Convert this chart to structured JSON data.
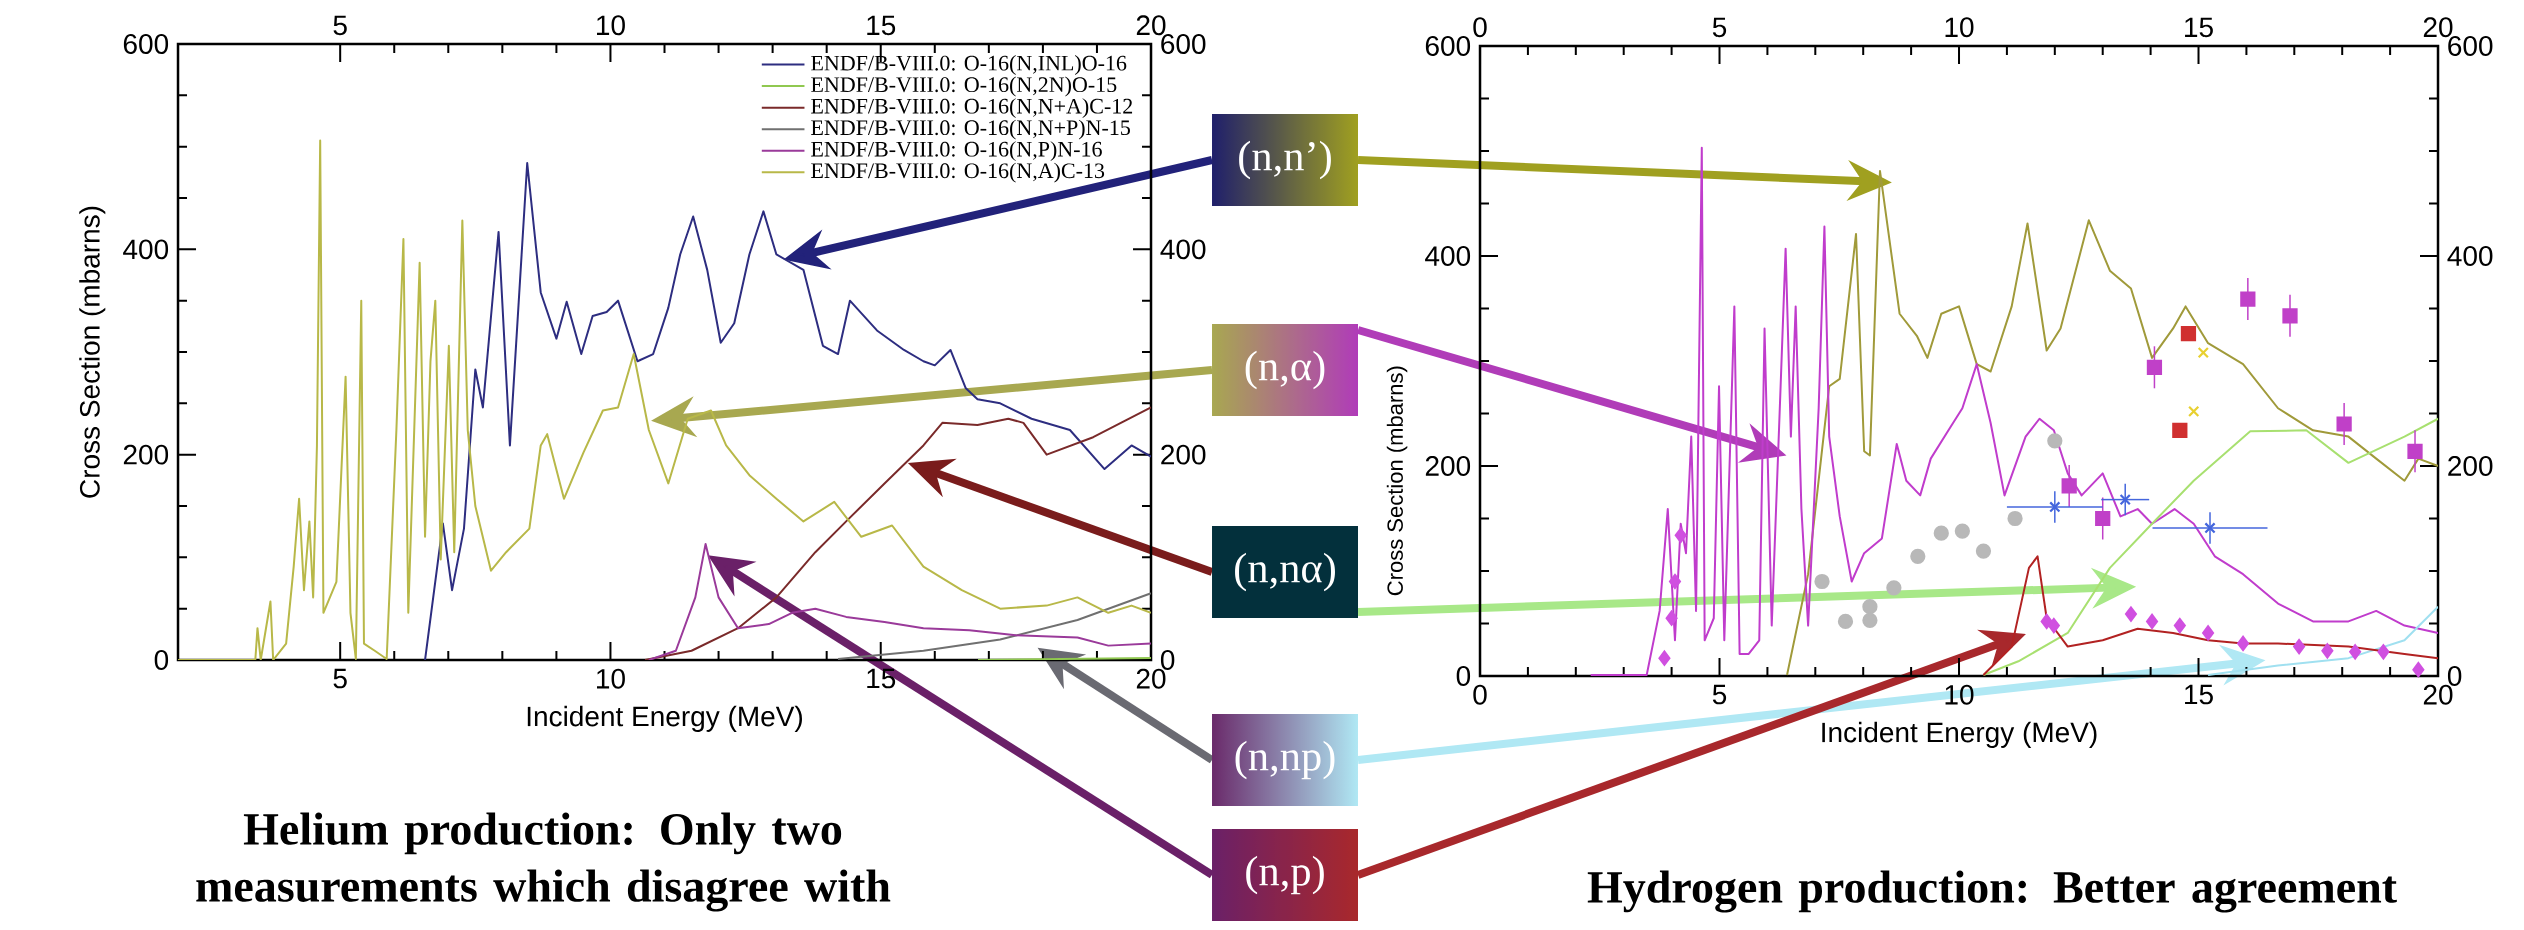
{
  "chart_data": [
    {
      "type": "line",
      "xlabel": "Incident Energy (MeV)",
      "ylabel": "Cross Section (mbarns)",
      "xlim": [
        2,
        20
      ],
      "xticks": [
        5,
        10,
        15,
        20
      ],
      "ylim": [
        0,
        600
      ],
      "yticks": [
        0,
        200,
        400,
        600
      ],
      "x2lim": [
        2,
        20
      ],
      "x2ticks": [
        5,
        10,
        15,
        20
      ],
      "y2lim": [
        0,
        600
      ],
      "y2ticks": [
        0,
        200,
        400,
        600
      ],
      "legend": "top right",
      "marker": "none",
      "line_style": "solid",
      "annotations": [
        "(n,n’)",
        "(n,α)",
        "(n,nα)",
        "(n,np)",
        "(n,p)",
        "Helium production: Only two measurements which disagree with"
      ],
      "series": [
        {
          "name": "ENDF/B-VIII.0: O-16(N,INL)O-16",
          "color": "#2d2d80",
          "x": [
            6.57,
            6.9,
            7.07,
            7.29,
            7.5,
            7.64,
            7.93,
            8.14,
            8.46,
            8.71,
            9.0,
            9.19,
            9.46,
            9.67,
            9.93,
            10.14,
            10.5,
            10.79,
            11.07,
            11.29,
            11.53,
            11.79,
            12.04,
            12.29,
            12.57,
            12.83,
            13.07,
            13.57,
            13.93,
            14.21,
            14.43,
            14.93,
            15.43,
            15.79,
            16.0,
            16.29,
            16.57,
            16.79,
            17.21,
            17.79,
            18.5,
            19.14,
            19.64,
            20
          ],
          "values": [
            0,
            133,
            68,
            128,
            283,
            246,
            417,
            209,
            484,
            358,
            313,
            349,
            298,
            335,
            339,
            350,
            291,
            298,
            343,
            395,
            432,
            380,
            309,
            328,
            395,
            437,
            395,
            380,
            306,
            298,
            350,
            321,
            302,
            291,
            287,
            302,
            265,
            254,
            250,
            235,
            224,
            186,
            209,
            198
          ]
        },
        {
          "name": "ENDF/B-VIII.0: O-16(N,2N)O-15",
          "color": "#90c850",
          "x": [
            16.8,
            20
          ],
          "values": [
            0,
            2
          ]
        },
        {
          "name": "ENDF/B-VIII.0: O-16(N,N+A)C-12",
          "color": "#7a2a2a",
          "x": [
            10.64,
            11.5,
            12.36,
            13.07,
            13.79,
            14.36,
            15.07,
            15.79,
            16.14,
            16.79,
            17.36,
            17.64,
            18.07,
            18.93,
            20
          ],
          "values": [
            0,
            9,
            31,
            61,
            105,
            135,
            172,
            209,
            231,
            229,
            235,
            231,
            200,
            217,
            246
          ]
        },
        {
          "name": "ENDF/B-VIII.0: O-16(N,N+P)N-15",
          "color": "#707070",
          "x": [
            14.21,
            15.79,
            17.21,
            18.64,
            20
          ],
          "values": [
            1,
            9,
            20,
            39,
            65
          ]
        },
        {
          "name": "ENDF/B-VIII.0: O-16(N,P)N-16",
          "color": "#9a3a9a",
          "x": [
            10.71,
            11.21,
            11.57,
            11.76,
            12.0,
            12.36,
            12.93,
            13.36,
            13.79,
            14.36,
            15.07,
            15.79,
            16.64,
            17.5,
            18.64,
            19.21,
            20
          ],
          "values": [
            0,
            9,
            61,
            113,
            61,
            31,
            35,
            46,
            50,
            42,
            37,
            31,
            29,
            24,
            22,
            14,
            16
          ]
        },
        {
          "name": "ENDF/B-VIII.0: O-16(N,A)C-13",
          "color": "#b8b848",
          "x": [
            2,
            3.43,
            3.47,
            3.53,
            3.71,
            3.76,
            4.0,
            4.14,
            4.24,
            4.33,
            4.43,
            4.5,
            4.57,
            4.63,
            4.69,
            4.93,
            5.1,
            5.19,
            5.29,
            5.39,
            5.44,
            5.64,
            5.86,
            6.04,
            6.17,
            6.26,
            6.47,
            6.57,
            6.67,
            6.76,
            6.86,
            7.01,
            7.11,
            7.26,
            7.36,
            7.5,
            7.79,
            8.07,
            8.5,
            8.71,
            8.83,
            9.14,
            9.5,
            9.86,
            10.14,
            10.43,
            10.71,
            11.07,
            11.43,
            11.86,
            12.14,
            12.57,
            13.07,
            13.57,
            14.14,
            14.64,
            15.21,
            15.79,
            16.5,
            17.21,
            18.07,
            18.64,
            19.21,
            19.64,
            20
          ],
          "values": [
            0,
            0,
            31,
            0,
            57,
            0,
            16,
            91,
            157,
            68,
            135,
            61,
            209,
            506,
            46,
            76,
            276,
            46,
            1,
            350,
            16,
            9,
            1,
            224,
            410,
            46,
            387,
            120,
            291,
            350,
            98,
            306,
            105,
            428,
            224,
            150,
            87,
            105,
            128,
            209,
            220,
            157,
            202,
            243,
            246,
            298,
            224,
            172,
            235,
            243,
            209,
            180,
            157,
            135,
            154,
            120,
            131,
            91,
            68,
            50,
            53,
            61,
            46,
            53,
            46
          ]
        }
      ]
    },
    {
      "type": "line",
      "xlabel": "Incident Energy (MeV)",
      "ylabel": "Cross Section (mbarns)",
      "xlim": [
        0,
        20
      ],
      "xticks": [
        0,
        5,
        10,
        15,
        20
      ],
      "ylim": [
        0,
        600
      ],
      "yticks": [
        0,
        200,
        400,
        600
      ],
      "x2lim": [
        0,
        20
      ],
      "x2ticks": [
        0,
        5,
        10,
        15,
        20
      ],
      "y2lim": [
        0,
        600
      ],
      "y2ticks": [
        0,
        200,
        400,
        600
      ],
      "marker": "none",
      "line_style": "solid",
      "annotations": [
        "Hydrogen production: Better agreement"
      ],
      "series": [
        {
          "color": "#a09a3a",
          "x": [
            6.41,
            6.85,
            7.29,
            7.51,
            7.85,
            8.02,
            8.14,
            8.35,
            8.76,
            9.12,
            9.34,
            9.63,
            10.0,
            10.37,
            10.66,
            11.1,
            11.43,
            11.83,
            12.12,
            12.71,
            13.15,
            13.59,
            14.03,
            14.47,
            14.73,
            15.2,
            15.93,
            16.66,
            17.39,
            18.13,
            18.71,
            19.3,
            19.59,
            20
          ],
          "values": [
            1,
            97,
            276,
            283,
            421,
            214,
            210,
            481,
            345,
            324,
            303,
            345,
            352,
            297,
            290,
            352,
            431,
            310,
            331,
            434,
            386,
            369,
            303,
            331,
            352,
            317,
            297,
            255,
            234,
            228,
            207,
            186,
            207,
            200
          ]
        },
        {
          "color": "#c03ccc",
          "x": [
            2.31,
            3.48,
            3.75,
            3.92,
            4.07,
            4.19,
            4.3,
            4.41,
            4.51,
            4.63,
            4.69,
            4.88,
            4.99,
            5.1,
            5.31,
            5.42,
            5.61,
            5.83,
            5.94,
            6.09,
            6.27,
            6.38,
            6.49,
            6.59,
            6.71,
            6.85,
            7.07,
            7.19,
            7.29,
            7.51,
            7.76,
            8.02,
            8.39,
            8.7,
            8.9,
            9.19,
            9.41,
            9.78,
            10.07,
            10.37,
            10.66,
            10.95,
            11.39,
            11.68,
            11.98,
            12.27,
            12.56,
            13.0,
            13.37,
            13.73,
            14.03,
            14.5,
            14.9,
            15.34,
            15.93,
            16.66,
            17.39,
            18.13,
            18.71,
            19.3,
            20
          ],
          "values": [
            1,
            1,
            62,
            159,
            34,
            145,
            117,
            228,
            62,
            503,
            34,
            55,
            276,
            34,
            352,
            21,
            21,
            34,
            331,
            48,
            269,
            407,
            228,
            352,
            159,
            48,
            255,
            428,
            228,
            152,
            90,
            117,
            131,
            221,
            186,
            172,
            207,
            234,
            255,
            297,
            241,
            172,
            228,
            245,
            234,
            193,
            172,
            193,
            152,
            159,
            145,
            159,
            145,
            114,
            97,
            69,
            52,
            52,
            62,
            48,
            41
          ]
        },
        {
          "color": "#a8e070",
          "x": [
            10.51,
            11.24,
            12.27,
            13.15,
            14.03,
            14.9,
            16.08,
            17.25,
            18.13,
            19.3,
            20
          ],
          "values": [
            1,
            14,
            41,
            103,
            145,
            186,
            233,
            234,
            203,
            228,
            245
          ]
        },
        {
          "color": "#a0e0f0",
          "x": [
            15.2,
            16.66,
            18.13,
            19.3,
            20
          ],
          "values": [
            1,
            10,
            17,
            34,
            66
          ]
        },
        {
          "type": "scatter",
          "marker": "circle",
          "color": "#b8b8b8",
          "x": [
            7.14,
            7.63,
            8.14,
            8.14,
            8.64,
            9.14,
            9.63,
            10.07,
            10.51,
            11.17,
            12.0
          ],
          "values": [
            90,
            52,
            66,
            53,
            84,
            114,
            136,
            138,
            119,
            150,
            224
          ]
        },
        {
          "type": "scatter",
          "marker": "square",
          "color": "#c040c8",
          "x": [
            12.3,
            13.0,
            14.08,
            16.03,
            16.91,
            18.04,
            19.52
          ],
          "values": [
            181,
            150,
            294,
            359,
            343,
            240,
            214
          ],
          "errors": [
            20,
            20,
            20,
            20,
            20,
            20,
            20
          ]
        },
        {
          "type": "scatter",
          "marker": "cross",
          "color": "#4466dd",
          "x": [
            12.0,
            13.47,
            15.24
          ],
          "values": [
            161,
            168,
            141
          ],
          "errors": [
            15,
            15,
            15
          ],
          "xerrors": [
            1.0,
            0.5,
            1.2
          ]
        },
        {
          "type": "scatter",
          "marker": "diamond",
          "color": "#d050e0",
          "x": [
            3.85,
            4.0,
            4.07,
            4.19,
            11.83,
            11.98,
            13.59,
            14.03,
            14.61,
            15.2,
            15.93,
            17.1,
            17.69,
            18.27,
            18.86,
            19.59
          ],
          "values": [
            17,
            55,
            90,
            134,
            52,
            48,
            59,
            52,
            48,
            41,
            31,
            28,
            24,
            23,
            23,
            6
          ]
        },
        {
          "type": "scatter",
          "marker": "square",
          "color": "#d03030",
          "x": [
            14.79,
            14.61
          ],
          "values": [
            326,
            234
          ]
        },
        {
          "type": "scatter",
          "marker": "cross",
          "color": "#e8d030",
          "x": [
            15.1,
            14.9
          ],
          "values": [
            308,
            252
          ]
        },
        {
          "color": "#b22222",
          "x": [
            10.51,
            11.1,
            11.46,
            11.64,
            11.83,
            12.27,
            13.0,
            13.73,
            14.47,
            15.2,
            15.93,
            16.66,
            18.13,
            19.3,
            20
          ],
          "values": [
            1,
            28,
            103,
            114,
            55,
            28,
            34,
            45,
            41,
            34,
            31,
            31,
            28,
            21,
            17
          ]
        }
      ]
    }
  ]
}
